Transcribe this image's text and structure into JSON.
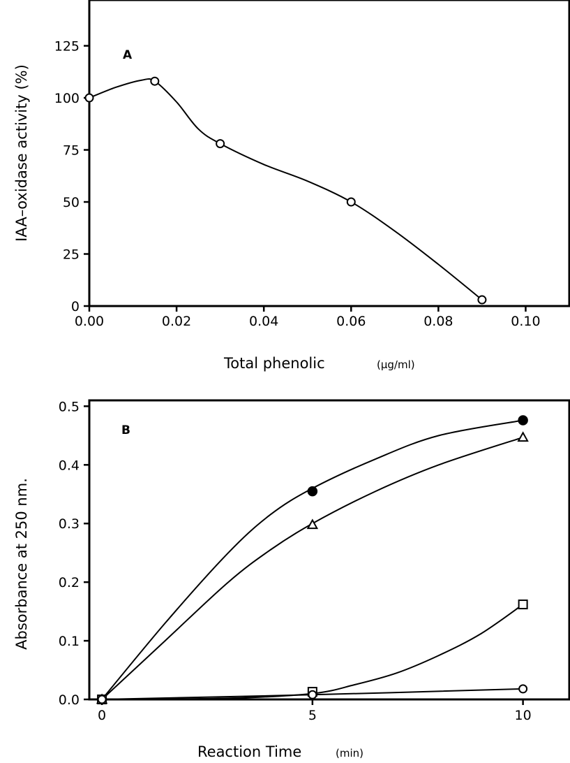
{
  "chart_data": [
    {
      "type": "line",
      "panel_label": "A",
      "xlabel": "Total phenolic",
      "xlabel_unit": "(µg/ml)",
      "ylabel": "IAA–oxidase activity (%)",
      "xlim": [
        0,
        0.11
      ],
      "ylim": [
        0,
        147
      ],
      "x_ticks": [
        0.0,
        0.02,
        0.04,
        0.06,
        0.08,
        0.1
      ],
      "x_tick_labels": [
        "0.00",
        "0.02",
        "0.04",
        "0.06",
        "0.08",
        "0.10"
      ],
      "y_ticks": [
        0,
        25,
        50,
        75,
        100,
        125
      ],
      "y_tick_labels": [
        "0",
        "25",
        "50",
        "75",
        "100",
        "125"
      ],
      "grid": false,
      "series": [
        {
          "marker": "open-circle",
          "x": [
            0.0,
            0.015,
            0.03,
            0.06,
            0.09
          ],
          "y": [
            100,
            108,
            78,
            50,
            3
          ],
          "curve_x": [
            0.0,
            0.006,
            0.012,
            0.015,
            0.02,
            0.025,
            0.03,
            0.04,
            0.05,
            0.06,
            0.07,
            0.08,
            0.09
          ],
          "curve_y": [
            100,
            105,
            108.5,
            108,
            98,
            85,
            78,
            68,
            60,
            50,
            36,
            20,
            3
          ]
        }
      ]
    },
    {
      "type": "line",
      "panel_label": "B",
      "xlabel": "Reaction Time",
      "xlabel_unit": "(min)",
      "ylabel": "Absorbance at 250 nm.",
      "xlim": [
        -0.3,
        11.1
      ],
      "ylim": [
        0,
        0.51
      ],
      "x_ticks": [
        0,
        5,
        10
      ],
      "x_tick_labels": [
        "0",
        "5",
        "10"
      ],
      "y_ticks": [
        0.0,
        0.1,
        0.2,
        0.3,
        0.4,
        0.5
      ],
      "y_tick_labels": [
        "0.0",
        "0.1",
        "0.2",
        "0.3",
        "0.4",
        "0.5"
      ],
      "grid": false,
      "series": [
        {
          "marker": "filled-circle",
          "x": [
            0,
            5,
            10
          ],
          "y": [
            0.0,
            0.355,
            0.476
          ],
          "curve_x": [
            0,
            1.5,
            3,
            4,
            5,
            6.5,
            8,
            10
          ],
          "curve_y": [
            0.0,
            0.13,
            0.25,
            0.315,
            0.36,
            0.41,
            0.45,
            0.476
          ]
        },
        {
          "marker": "open-triangle",
          "x": [
            0,
            5,
            10
          ],
          "y": [
            0.0,
            0.298,
            0.447
          ],
          "curve_x": [
            0,
            1.5,
            3,
            4,
            5,
            6.5,
            8,
            10
          ],
          "curve_y": [
            0.0,
            0.1,
            0.2,
            0.255,
            0.3,
            0.355,
            0.4,
            0.447
          ]
        },
        {
          "marker": "open-square",
          "x": [
            0,
            5,
            10
          ],
          "y": [
            0.0,
            0.013,
            0.162
          ],
          "curve_x": [
            0,
            3,
            5,
            6,
            7,
            8,
            9,
            10
          ],
          "curve_y": [
            0.0,
            0.002,
            0.01,
            0.025,
            0.045,
            0.075,
            0.112,
            0.162
          ]
        },
        {
          "marker": "open-circle",
          "x": [
            0,
            5,
            10
          ],
          "y": [
            0.0,
            0.008,
            0.018
          ],
          "curve_x": [
            0,
            5,
            10
          ],
          "curve_y": [
            0.0,
            0.008,
            0.018
          ]
        }
      ]
    }
  ]
}
